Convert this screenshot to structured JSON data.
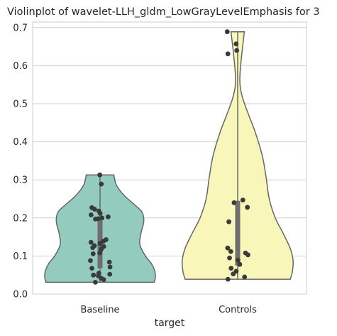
{
  "chart_data": {
    "type": "violin",
    "title": "Violinplot of wavelet-LLH_gldm_LowGrayLevelEmphasis for 3",
    "xlabel": "target",
    "ylabel": "",
    "categories": [
      "Baseline",
      "Controls"
    ],
    "ylim": [
      0,
      0.72
    ],
    "yticks": [
      0.0,
      0.1,
      0.2,
      0.3,
      0.4,
      0.5,
      0.6,
      0.7
    ],
    "grid": true,
    "colors": {
      "Baseline": "#94cbbf",
      "Controls": "#f8f7b9",
      "outline": "#666666",
      "points": "#3a3a3a",
      "box": "#6e6e6e",
      "grid": "#d0d0d0"
    },
    "groups": [
      {
        "name": "Baseline",
        "min": 0.031,
        "max": 0.313,
        "q1": 0.068,
        "q3": 0.197,
        "points": [
          0.313,
          0.289,
          0.227,
          0.223,
          0.218,
          0.212,
          0.208,
          0.203,
          0.2,
          0.198,
          0.197,
          0.143,
          0.139,
          0.136,
          0.133,
          0.127,
          0.125,
          0.122,
          0.118,
          0.108,
          0.106,
          0.088,
          0.084,
          0.071,
          0.068,
          0.055,
          0.052,
          0.05,
          0.048,
          0.042,
          0.038,
          0.031
        ]
      },
      {
        "name": "Controls",
        "min": 0.039,
        "max": 0.689,
        "q1": 0.075,
        "q3": 0.245,
        "points": [
          0.689,
          0.657,
          0.64,
          0.631,
          0.247,
          0.24,
          0.228,
          0.19,
          0.121,
          0.112,
          0.108,
          0.103,
          0.095,
          0.089,
          0.078,
          0.068,
          0.06,
          0.053,
          0.045,
          0.039
        ]
      }
    ]
  }
}
